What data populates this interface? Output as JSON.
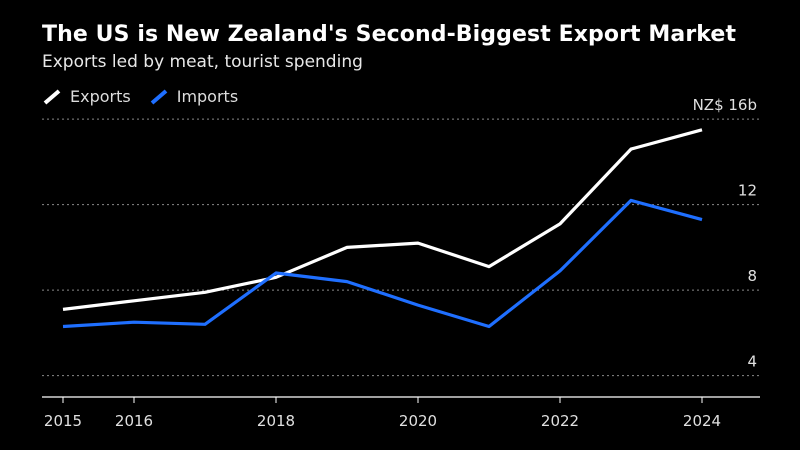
{
  "title": "The US is New Zealand's Second-Biggest Export Market",
  "subtitle": "Exports led by meat, tourist spending",
  "legend": [
    {
      "name": "Exports",
      "color": "#ffffff"
    },
    {
      "name": "Imports",
      "color": "#1f6fff"
    }
  ],
  "chart_data": {
    "type": "line",
    "x": [
      2015,
      2016,
      2017,
      2018,
      2019,
      2020,
      2021,
      2022,
      2023,
      2024
    ],
    "series": [
      {
        "name": "Exports",
        "color": "#ffffff",
        "values": [
          7.1,
          7.5,
          7.9,
          8.6,
          10.0,
          10.2,
          9.1,
          11.1,
          14.6,
          15.5
        ]
      },
      {
        "name": "Imports",
        "color": "#1f6fff",
        "values": [
          6.3,
          6.5,
          6.4,
          8.8,
          8.4,
          7.3,
          6.3,
          8.9,
          12.2,
          11.3
        ]
      }
    ],
    "ylim": [
      3.5,
      16.5
    ],
    "yticks": [
      {
        "value": 16,
        "label": "NZ$ 16b"
      },
      {
        "value": 12,
        "label": "12"
      },
      {
        "value": 8,
        "label": "8"
      },
      {
        "value": 4,
        "label": "4"
      }
    ],
    "xticks": [
      {
        "value": 2015,
        "label": "2015"
      },
      {
        "value": 2016,
        "label": "2016"
      },
      {
        "value": 2018,
        "label": "2018"
      },
      {
        "value": 2020,
        "label": "2020"
      },
      {
        "value": 2022,
        "label": "2022"
      },
      {
        "value": 2024,
        "label": "2024"
      }
    ],
    "grid": "horizontal dotted",
    "legend_position": "top-left"
  }
}
